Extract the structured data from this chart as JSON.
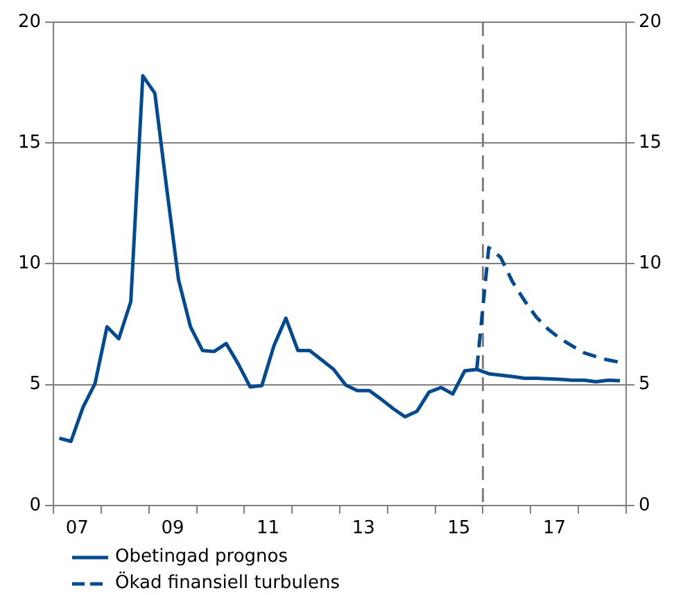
{
  "chart_data": {
    "type": "line",
    "xlim": [
      "2007-01-01",
      "2019-01-01"
    ],
    "xticks": [
      {
        "value": "2007-01-01",
        "label": null
      },
      {
        "value": "2007-07-01",
        "label": "07"
      },
      {
        "value": "2008-01-01",
        "label": null
      },
      {
        "value": "2009-01-01",
        "label": null
      },
      {
        "value": "2009-07-01",
        "label": "09"
      },
      {
        "value": "2010-01-01",
        "label": null
      },
      {
        "value": "2011-01-01",
        "label": null
      },
      {
        "value": "2011-07-01",
        "label": "11"
      },
      {
        "value": "2012-01-01",
        "label": null
      },
      {
        "value": "2013-01-01",
        "label": null
      },
      {
        "value": "2013-07-01",
        "label": "13"
      },
      {
        "value": "2014-01-01",
        "label": null
      },
      {
        "value": "2015-01-01",
        "label": null
      },
      {
        "value": "2015-07-01",
        "label": "15"
      },
      {
        "value": "2016-01-01",
        "label": null
      },
      {
        "value": "2017-01-01",
        "label": null
      },
      {
        "value": "2017-07-01",
        "label": "17"
      },
      {
        "value": "2018-01-01",
        "label": null
      },
      {
        "value": "2019-01-01",
        "label": null
      }
    ],
    "ylim": [
      0,
      20
    ],
    "yticks": [
      0,
      5,
      10,
      15,
      20
    ],
    "y2lim": [
      0,
      20
    ],
    "y2ticks": [
      0,
      5,
      10,
      15,
      20
    ],
    "grid": "y",
    "legend": "bottom left",
    "marker": "none",
    "ref_lines": [
      {
        "axis": "x",
        "value": "2016-01-01",
        "color": "#7f7f7f",
        "line_style": "dashed"
      }
    ],
    "series": [
      {
        "name": "Obetingad prognos",
        "color": "#004b93",
        "line_style": "solid",
        "x": [
          "2007-02-15",
          "2007-05-15",
          "2007-08-15",
          "2007-11-15",
          "2008-02-15",
          "2008-05-15",
          "2008-08-15",
          "2008-11-15",
          "2009-02-15",
          "2009-05-15",
          "2009-08-15",
          "2009-11-15",
          "2010-02-15",
          "2010-05-15",
          "2010-08-15",
          "2010-11-15",
          "2011-02-15",
          "2011-05-15",
          "2011-08-15",
          "2011-11-15",
          "2012-02-15",
          "2012-05-15",
          "2012-08-15",
          "2012-11-15",
          "2013-02-15",
          "2013-05-15",
          "2013-08-15",
          "2013-11-15",
          "2014-02-15",
          "2014-05-15",
          "2014-08-15",
          "2014-11-15",
          "2015-02-15",
          "2015-05-15",
          "2015-08-15",
          "2015-11-15",
          "2016-02-15",
          "2016-05-15",
          "2016-08-15",
          "2016-11-15",
          "2017-02-15",
          "2017-05-15",
          "2017-08-15",
          "2017-11-15",
          "2018-02-15",
          "2018-05-15",
          "2018-08-15",
          "2018-11-15"
        ],
        "values": [
          2.78,
          2.65,
          4.06,
          5.04,
          7.39,
          6.9,
          8.43,
          17.78,
          17.06,
          13.2,
          9.35,
          7.39,
          6.41,
          6.37,
          6.7,
          5.86,
          4.9,
          4.96,
          6.6,
          7.75,
          6.41,
          6.41,
          6.02,
          5.63,
          4.98,
          4.75,
          4.75,
          4.39,
          4.0,
          3.67,
          3.9,
          4.69,
          4.88,
          4.61,
          5.57,
          5.63,
          5.45,
          5.39,
          5.33,
          5.26,
          5.26,
          5.24,
          5.22,
          5.18,
          5.18,
          5.12,
          5.18,
          5.16
        ]
      },
      {
        "name": "Ökad finansiell turbulens",
        "color": "#004b93",
        "line_style": "dashed",
        "x": [
          "2015-11-15",
          "2016-02-15",
          "2016-05-15",
          "2016-08-15",
          "2016-11-15",
          "2017-02-15",
          "2017-05-15",
          "2017-08-15",
          "2017-11-15",
          "2018-02-15",
          "2018-05-15",
          "2018-08-15",
          "2018-11-15"
        ],
        "values": [
          5.63,
          10.67,
          10.27,
          9.25,
          8.47,
          7.78,
          7.29,
          6.9,
          6.6,
          6.31,
          6.16,
          6.02,
          5.92
        ]
      }
    ]
  }
}
